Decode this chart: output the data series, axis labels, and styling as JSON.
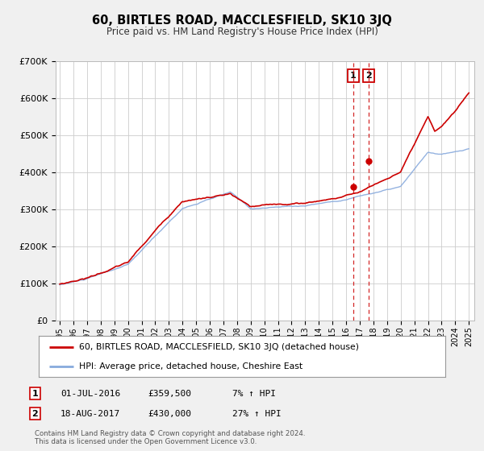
{
  "title": "60, BIRTLES ROAD, MACCLESFIELD, SK10 3JQ",
  "subtitle": "Price paid vs. HM Land Registry's House Price Index (HPI)",
  "legend_line1": "60, BIRTLES ROAD, MACCLESFIELD, SK10 3JQ (detached house)",
  "legend_line2": "HPI: Average price, detached house, Cheshire East",
  "annotation1_label": "1",
  "annotation1_date": "01-JUL-2016",
  "annotation1_price": "£359,500",
  "annotation1_hpi": "7% ↑ HPI",
  "annotation1_year": 2016.5,
  "annotation1_value": 359500,
  "annotation2_label": "2",
  "annotation2_date": "18-AUG-2017",
  "annotation2_price": "£430,000",
  "annotation2_hpi": "27% ↑ HPI",
  "annotation2_year": 2017.63,
  "annotation2_value": 430000,
  "price_color": "#cc0000",
  "hpi_color": "#88aadd",
  "vline_color": "#cc0000",
  "background_color": "#f0f0f0",
  "plot_bg_color": "#ffffff",
  "grid_color": "#cccccc",
  "ylim": [
    0,
    700000
  ],
  "yticks": [
    0,
    100000,
    200000,
    300000,
    400000,
    500000,
    600000,
    700000
  ],
  "ytick_labels": [
    "£0",
    "£100K",
    "£200K",
    "£300K",
    "£400K",
    "£500K",
    "£600K",
    "£700K"
  ],
  "footer_line1": "Contains HM Land Registry data © Crown copyright and database right 2024.",
  "footer_line2": "This data is licensed under the Open Government Licence v3.0."
}
